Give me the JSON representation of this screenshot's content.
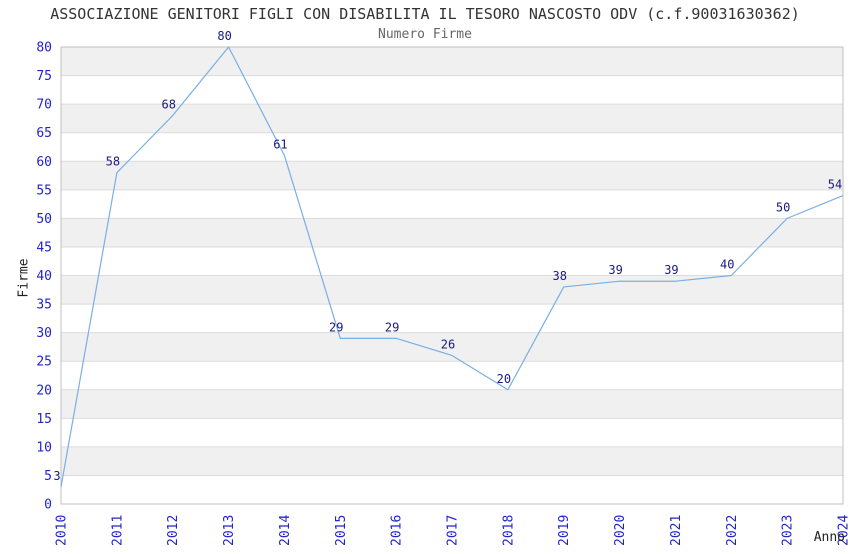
{
  "title": "ASSOCIAZIONE GENITORI FIGLI CON DISABILITA IL TESORO NASCOSTO ODV (c.f.90031630362)",
  "subtitle": "Numero Firme",
  "chart_data": {
    "type": "line",
    "x": [
      "2010",
      "2011",
      "2012",
      "2013",
      "2014",
      "2015",
      "2016",
      "2017",
      "2018",
      "2019",
      "2020",
      "2021",
      "2022",
      "2023",
      "2024"
    ],
    "values": [
      3,
      58,
      68,
      80,
      61,
      29,
      29,
      26,
      20,
      38,
      39,
      39,
      40,
      50,
      54
    ],
    "title": "Numero Firme",
    "xlabel": "Anno",
    "ylabel": "Firme",
    "ylim": [
      0,
      80
    ],
    "ytick_step": 5,
    "grid": true,
    "legend": "none",
    "stripes": true,
    "colors": {
      "line": "#79afe5",
      "data_label": "#1a1a80",
      "tick_label": "#2323cd",
      "stripe": "#f0f0f0",
      "gridline": "#dcdcdc",
      "plot_border": "#c0c0c0",
      "title": "#333333",
      "subtitle": "#666666",
      "axis_title": "#222222"
    }
  }
}
